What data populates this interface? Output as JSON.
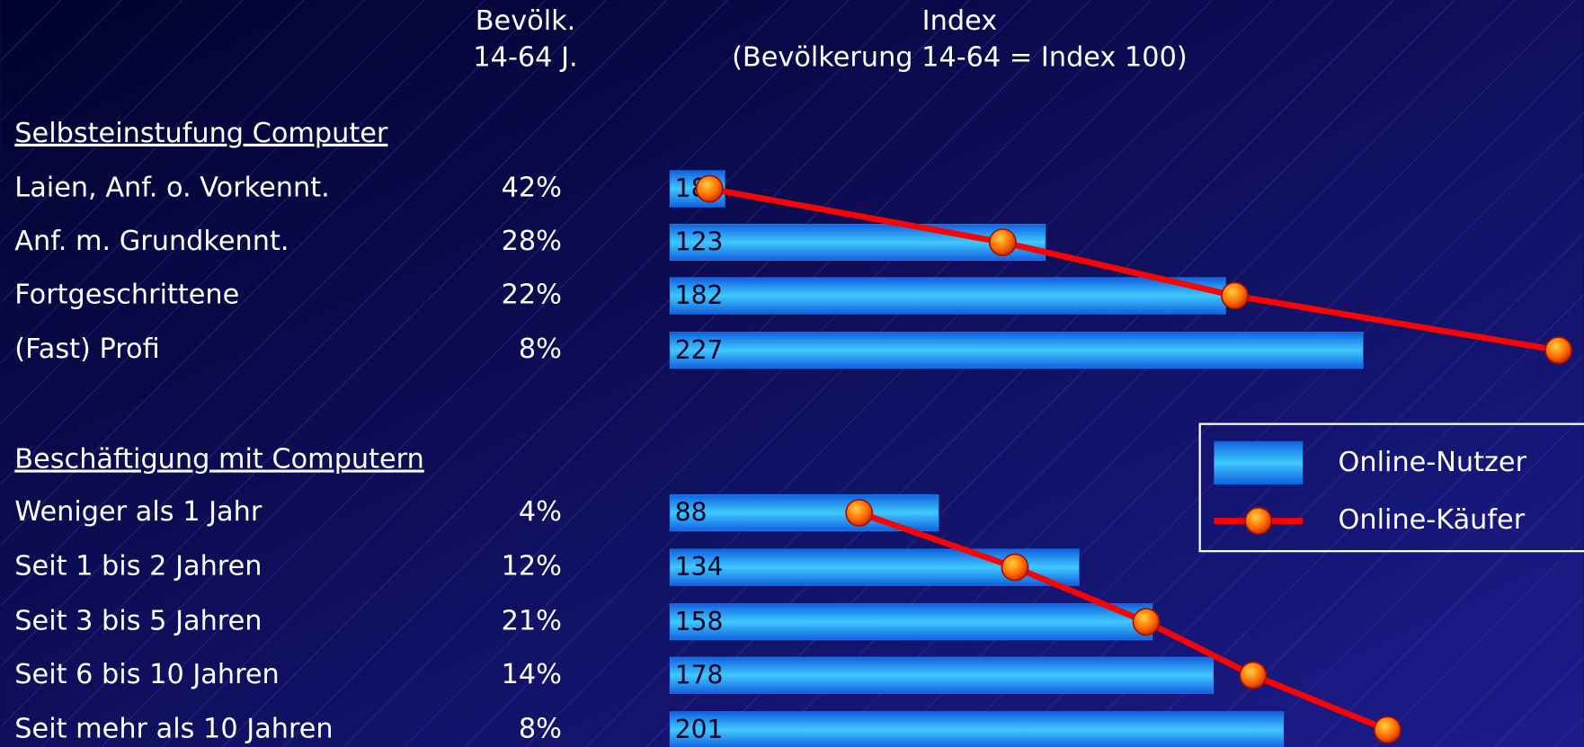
{
  "chart_data": {
    "type": "bar",
    "population_header": [
      "Bevölk.",
      "14-64 J."
    ],
    "index_header": [
      "Index",
      "(Bevölkerung 14-64 = Index 100)"
    ],
    "series": [
      {
        "name": "Online-Nutzer",
        "color": "#1e90ff",
        "type": "bar"
      },
      {
        "name": "Online-Käufer",
        "color": "#ff0000",
        "type": "line"
      }
    ],
    "groups": [
      {
        "title": "Selbsteinstufung Computer",
        "categories": [
          "Laien, Anf. o. Vorkennt.",
          "Anf. m. Grundkennt.",
          "Fortgeschrittene",
          "(Fast) Profi"
        ],
        "population_share": [
          42,
          28,
          22,
          8
        ],
        "population_share_labels": [
          "42%",
          "28%",
          "22%",
          "8%"
        ],
        "bar_values": [
          18,
          123,
          182,
          227
        ],
        "line_values": [
          13,
          109,
          185,
          291
        ]
      },
      {
        "title": "Beschäftigung mit Computern",
        "categories": [
          "Weniger als 1 Jahr",
          "Seit 1 bis 2 Jahren",
          "Seit 3 bis 5 Jahren",
          "Seit 6 bis 10 Jahren",
          "Seit mehr als 10 Jahren"
        ],
        "population_share": [
          4,
          12,
          21,
          14,
          8
        ],
        "population_share_labels": [
          "4%",
          "12%",
          "21%",
          "14%",
          "8%"
        ],
        "bar_values": [
          88,
          134,
          158,
          178,
          201
        ],
        "line_values": [
          62,
          113,
          156,
          191,
          235
        ]
      }
    ]
  }
}
